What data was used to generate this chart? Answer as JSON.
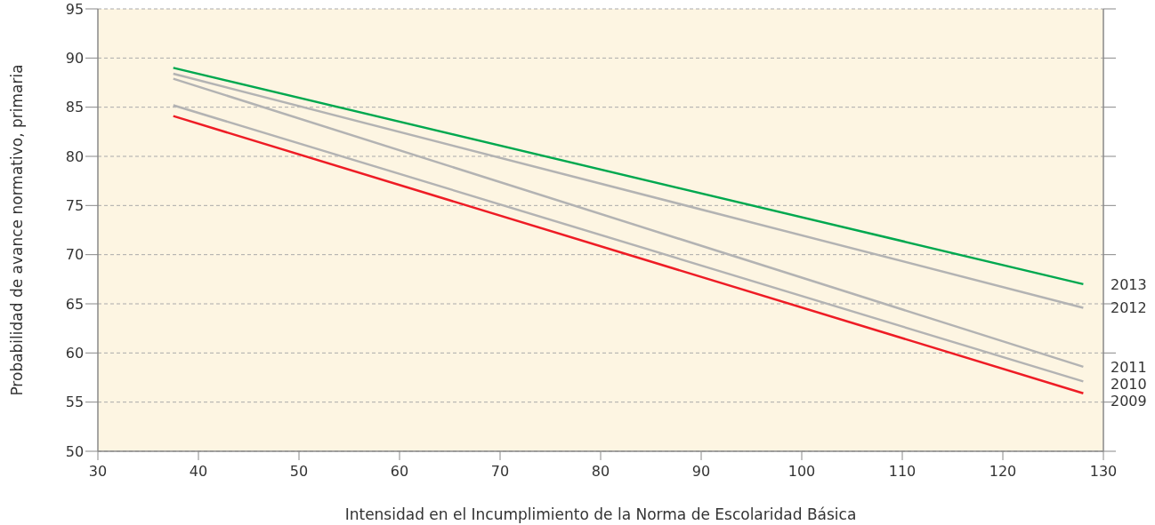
{
  "chart_data": {
    "type": "line",
    "xlabel": "Intensidad en el Incumplimiento de la Norma de Escolaridad Básica",
    "ylabel": "Probabilidad de avance normativo, primaria",
    "x": [
      37.5,
      128
    ],
    "series": [
      {
        "name": "2013",
        "color": "#00a84f",
        "values": [
          89.0,
          67.0
        ]
      },
      {
        "name": "2012",
        "color": "#b3b3b3",
        "values": [
          88.4,
          64.6
        ]
      },
      {
        "name": "2011",
        "color": "#b3b3b3",
        "values": [
          87.9,
          58.6
        ]
      },
      {
        "name": "2010",
        "color": "#b3b3b3",
        "values": [
          85.2,
          57.1
        ]
      },
      {
        "name": "2009",
        "color": "#ee1c25",
        "values": [
          84.1,
          55.9
        ]
      }
    ],
    "xlim": [
      30,
      130
    ],
    "xticks": [
      30,
      40,
      50,
      60,
      70,
      80,
      90,
      100,
      110,
      120,
      130
    ],
    "ylim": [
      50,
      95
    ],
    "yticks": [
      50,
      55,
      60,
      65,
      70,
      75,
      80,
      85,
      90,
      95
    ],
    "grid": "y",
    "marker": "none",
    "line_style": "solid"
  }
}
